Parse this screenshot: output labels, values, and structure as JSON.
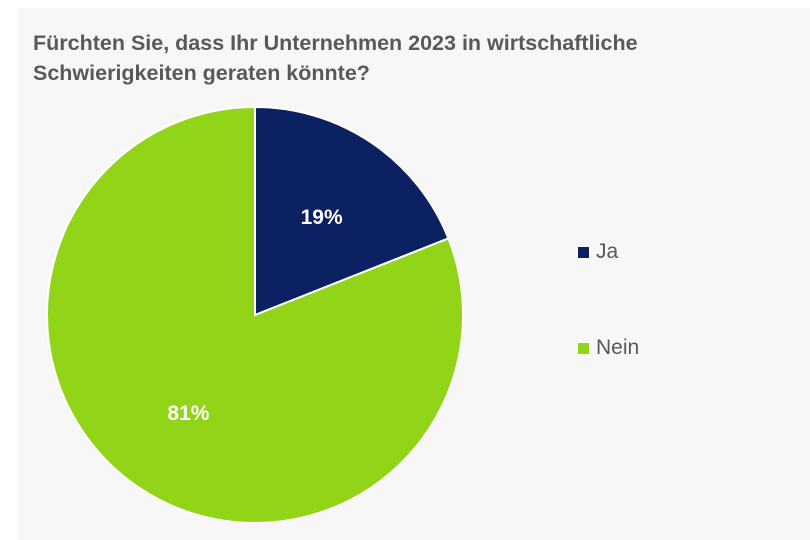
{
  "chart_data": {
    "type": "pie",
    "title": "Fürchten Sie, dass Ihr Unternehmen 2023 in wirtschaftliche Schwierigkeiten geraten könnte?",
    "categories": [
      "Ja",
      "Nein"
    ],
    "values": [
      19,
      81
    ],
    "data_labels": [
      "19%",
      "81%"
    ],
    "colors": [
      "#0c2161",
      "#92d418"
    ],
    "legend_position": "right",
    "start_angle": "12 o'clock, clockwise"
  }
}
